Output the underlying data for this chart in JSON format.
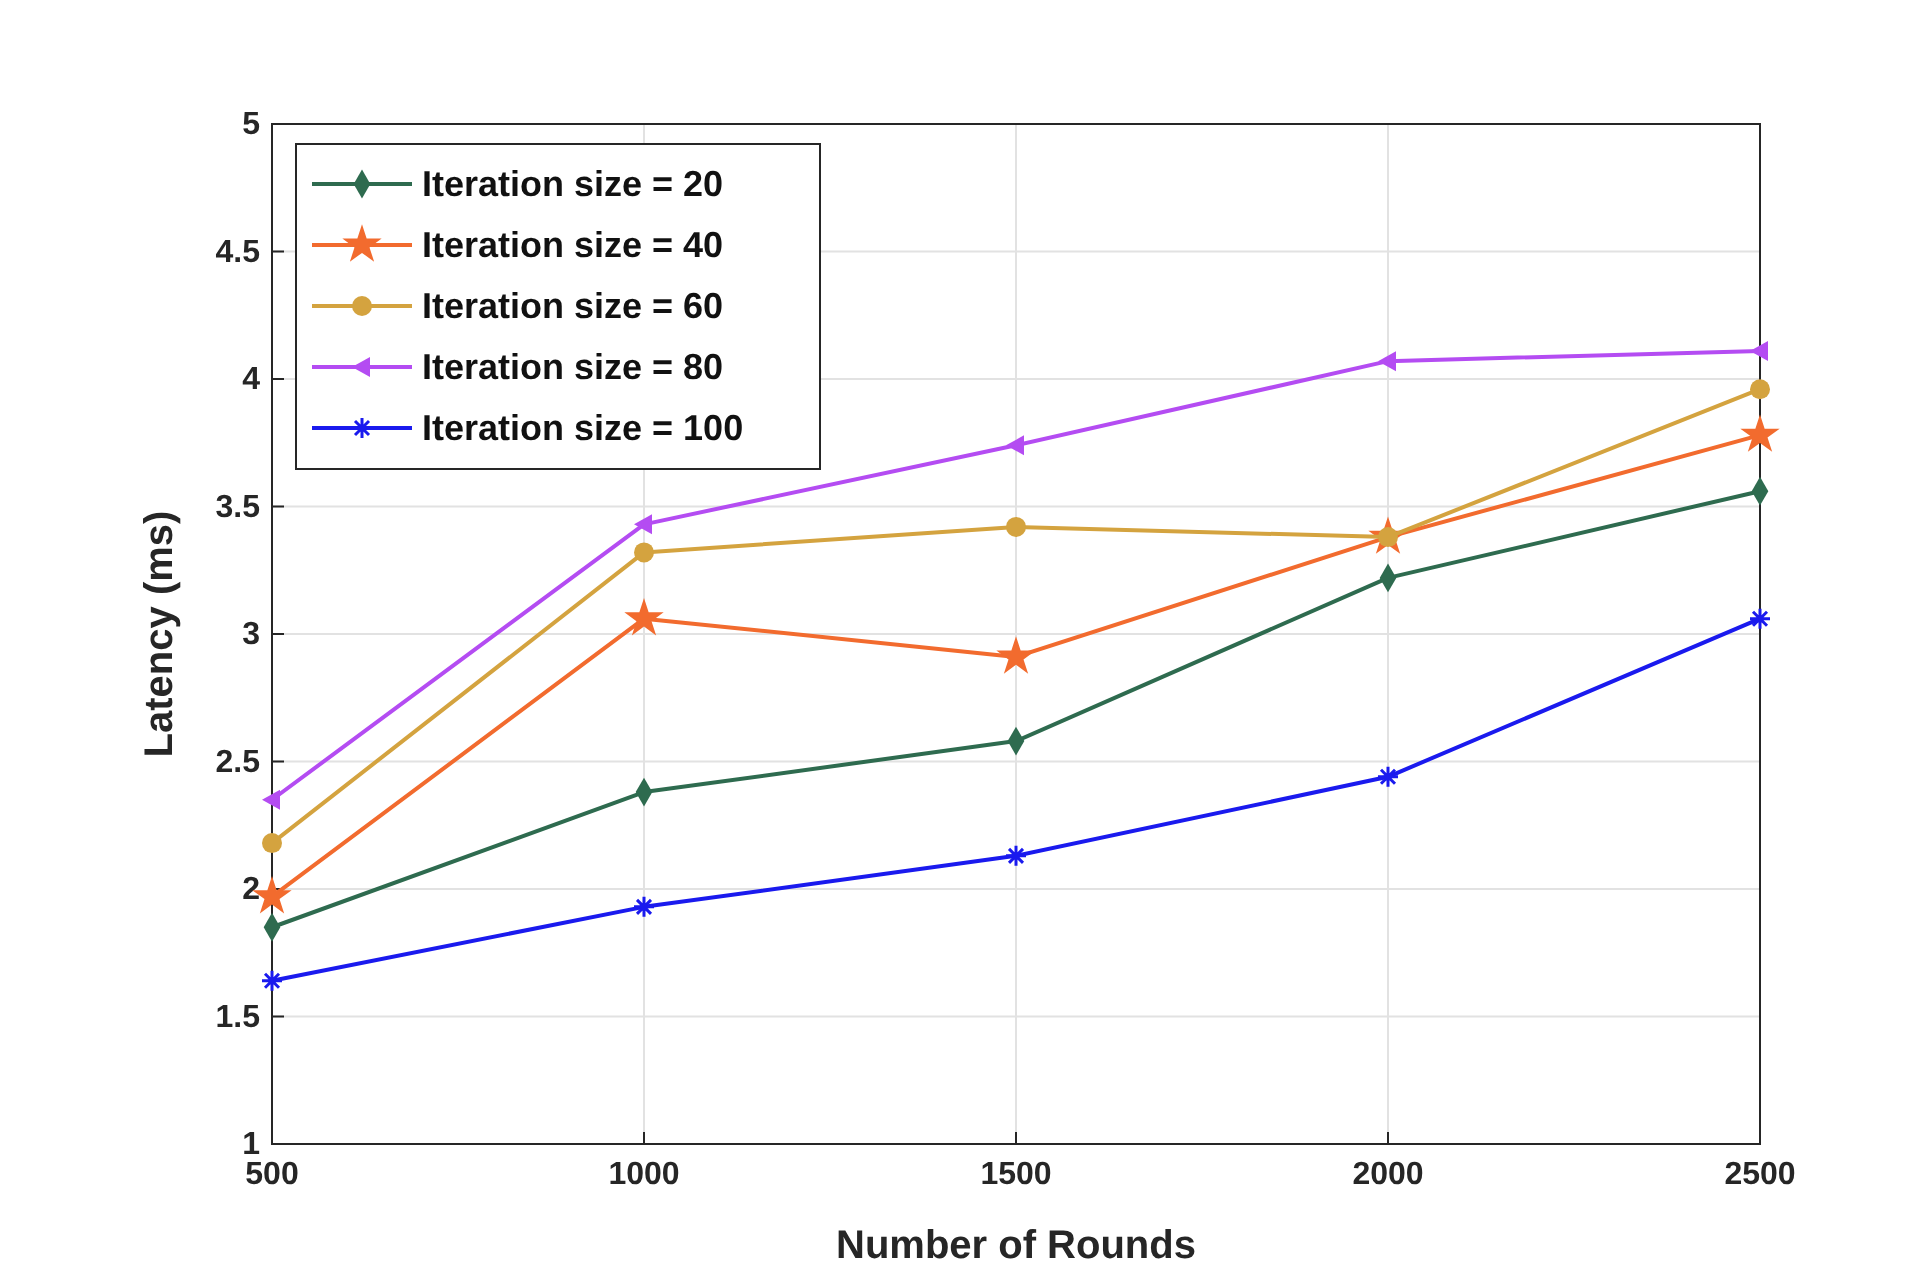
{
  "chart_data": {
    "type": "line",
    "xlabel": "Number of Rounds",
    "ylabel": "Latency (ms)",
    "x": [
      500,
      1000,
      1500,
      2000,
      2500
    ],
    "xlim": [
      500,
      2500
    ],
    "xticks": [
      500,
      1000,
      1500,
      2000,
      2500
    ],
    "ylim": [
      1,
      5
    ],
    "yticks": [
      1,
      1.5,
      2,
      2.5,
      3,
      3.5,
      4,
      4.5,
      5
    ],
    "grid": true,
    "legend": "top left",
    "line_style": "solid",
    "series": [
      {
        "name": "Iteration size = 20",
        "color": "#2e6b4f",
        "marker": "diamond",
        "values": [
          1.85,
          2.38,
          2.58,
          3.22,
          3.56
        ]
      },
      {
        "name": "Iteration size = 40",
        "color": "#f26b2e",
        "marker": "star",
        "values": [
          1.97,
          3.06,
          2.91,
          3.38,
          3.78
        ]
      },
      {
        "name": "Iteration size = 60",
        "color": "#d4a33f",
        "marker": "circle",
        "values": [
          2.18,
          3.32,
          3.42,
          3.38,
          3.96
        ]
      },
      {
        "name": "Iteration size = 80",
        "color": "#b44cf2",
        "marker": "triangle",
        "values": [
          2.35,
          3.43,
          3.74,
          4.07,
          4.11
        ]
      },
      {
        "name": "Iteration size = 100",
        "color": "#1a1aee",
        "marker": "cross",
        "values": [
          1.64,
          1.93,
          2.13,
          2.44,
          3.06
        ]
      }
    ]
  }
}
